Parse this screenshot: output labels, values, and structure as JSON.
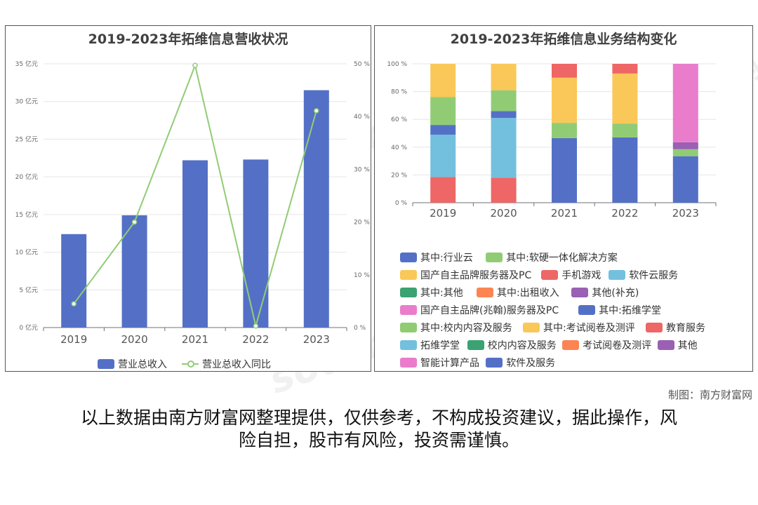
{
  "left_chart": {
    "title": "2019-2023年拓维信息营收状况",
    "legend": [
      "营业总收入",
      "营业总收入同比"
    ]
  },
  "right_chart": {
    "title": "2019-2023年拓维信息业务结构变化",
    "legend": [
      {
        "name": "其中:行业云",
        "color": "#5470c6"
      },
      {
        "name": "其中:软硬一体化解决方案",
        "color": "#91cc75"
      },
      {
        "name": "国产自主品牌服务器及PC",
        "color": "#fac858"
      },
      {
        "name": "手机游戏",
        "color": "#ee6666"
      },
      {
        "name": "软件云服务",
        "color": "#73c0de"
      },
      {
        "name": "其中:其他",
        "color": "#3ba272"
      },
      {
        "name": "其中:出租收入",
        "color": "#fc8452"
      },
      {
        "name": "其他(补充)",
        "color": "#9a60b4"
      },
      {
        "name": "国产自主品牌(兆翰)服务器及PC",
        "color": "#ea7ccc"
      },
      {
        "name": "其中:拓维学堂",
        "color": "#5470c6"
      },
      {
        "name": "其中:校内内容及服务",
        "color": "#91cc75"
      },
      {
        "name": "其中:考试阅卷及测评",
        "color": "#fac858"
      },
      {
        "name": "教育服务",
        "color": "#ee6666"
      },
      {
        "name": "拓维学堂",
        "color": "#73c0de"
      },
      {
        "name": "校内内容及服务",
        "color": "#3ba272"
      },
      {
        "name": "考试阅卷及测评",
        "color": "#fc8452"
      },
      {
        "name": "其他",
        "color": "#9a60b4"
      },
      {
        "name": "智能计算产品",
        "color": "#ea7ccc"
      },
      {
        "name": "软件及服务",
        "color": "#5470c6"
      }
    ]
  },
  "chart_data": [
    {
      "type": "bar+line",
      "title": "2019-2023年拓维信息营收状况",
      "categories": [
        "2019",
        "2020",
        "2021",
        "2022",
        "2023"
      ],
      "series": [
        {
          "name": "营业总收入",
          "type": "bar",
          "axis": "left",
          "values": [
            12.4,
            14.9,
            22.2,
            22.3,
            31.5
          ]
        },
        {
          "name": "营业总收入同比",
          "type": "line",
          "axis": "right",
          "values": [
            4.5,
            20.0,
            49.7,
            0.3,
            41.1
          ]
        }
      ],
      "y_left": {
        "min": 0,
        "max": 35,
        "step": 5,
        "suffix": "亿元"
      },
      "y_right": {
        "min": 0,
        "max": 50,
        "step": 10,
        "suffix": "%"
      },
      "tick_labels_left": [
        "0 亿元",
        "5 亿元",
        "10 亿元",
        "15 亿元",
        "20 亿元",
        "25 亿元",
        "30 亿元",
        "35 亿元"
      ],
      "tick_labels_right": [
        "0 %",
        "10 %",
        "20 %",
        "30 %",
        "40 %",
        "50 %"
      ]
    },
    {
      "type": "stacked-bar-100",
      "title": "2019-2023年拓维信息业务结构变化",
      "categories": [
        "2019",
        "2020",
        "2021",
        "2022",
        "2023"
      ],
      "y_range": [
        0,
        100
      ],
      "tick_labels": [
        "0 %",
        "20 %",
        "40 %",
        "60 %",
        "80 %",
        "100 %"
      ],
      "stacks": [
        [
          {
            "name": "手机游戏",
            "color": "#ee6666",
            "value": 18.5
          },
          {
            "name": "软件云服务",
            "color": "#73c0de",
            "value": 30.5
          },
          {
            "name": "其中:行业云",
            "color": "#5470c6",
            "value": 7
          },
          {
            "name": "其中:软硬一体化解决方案",
            "color": "#91cc75",
            "value": 20
          },
          {
            "name": "国产自主品牌服务器及PC",
            "color": "#fac858",
            "value": 24
          }
        ],
        [
          {
            "name": "手机游戏",
            "color": "#ee6666",
            "value": 18
          },
          {
            "name": "软件云服务",
            "color": "#73c0de",
            "value": 43
          },
          {
            "name": "其中:行业云",
            "color": "#5470c6",
            "value": 5
          },
          {
            "name": "其中:软硬一体化解决方案",
            "color": "#91cc75",
            "value": 15
          },
          {
            "name": "国产自主品牌服务器及PC",
            "color": "#fac858",
            "value": 19
          }
        ],
        [
          {
            "name": "软件及服务",
            "color": "#5470c6",
            "value": 46.5
          },
          {
            "name": "其中:校内内容及服务",
            "color": "#91cc75",
            "value": 11
          },
          {
            "name": "国产自主品牌服务器及PC",
            "color": "#fac858",
            "value": 32.5
          },
          {
            "name": "手机游戏",
            "color": "#ee6666",
            "value": 10
          }
        ],
        [
          {
            "name": "软件及服务",
            "color": "#5470c6",
            "value": 47
          },
          {
            "name": "其中:校内内容及服务",
            "color": "#91cc75",
            "value": 10
          },
          {
            "name": "国产自主品牌服务器及PC",
            "color": "#fac858",
            "value": 36
          },
          {
            "name": "手机游戏",
            "color": "#ee6666",
            "value": 7
          }
        ],
        [
          {
            "name": "软件及服务",
            "color": "#5470c6",
            "value": 33.5
          },
          {
            "name": "其中:校内内容及服务",
            "color": "#91cc75",
            "value": 5
          },
          {
            "name": "其他",
            "color": "#9a60b4",
            "value": 5
          },
          {
            "name": "智能计算产品",
            "color": "#ea7ccc",
            "value": 56.5
          }
        ]
      ]
    }
  ],
  "credit": "制图：南方财富网",
  "disclaimer": {
    "line1": "以上数据由南方财富网整理提供，仅供参考，不构成投资建议，据此操作，风",
    "line2": "险自担，股市有风险，投资需谨慎。"
  },
  "watermarks": [
    "南方财富网",
    "southmoney.com"
  ]
}
